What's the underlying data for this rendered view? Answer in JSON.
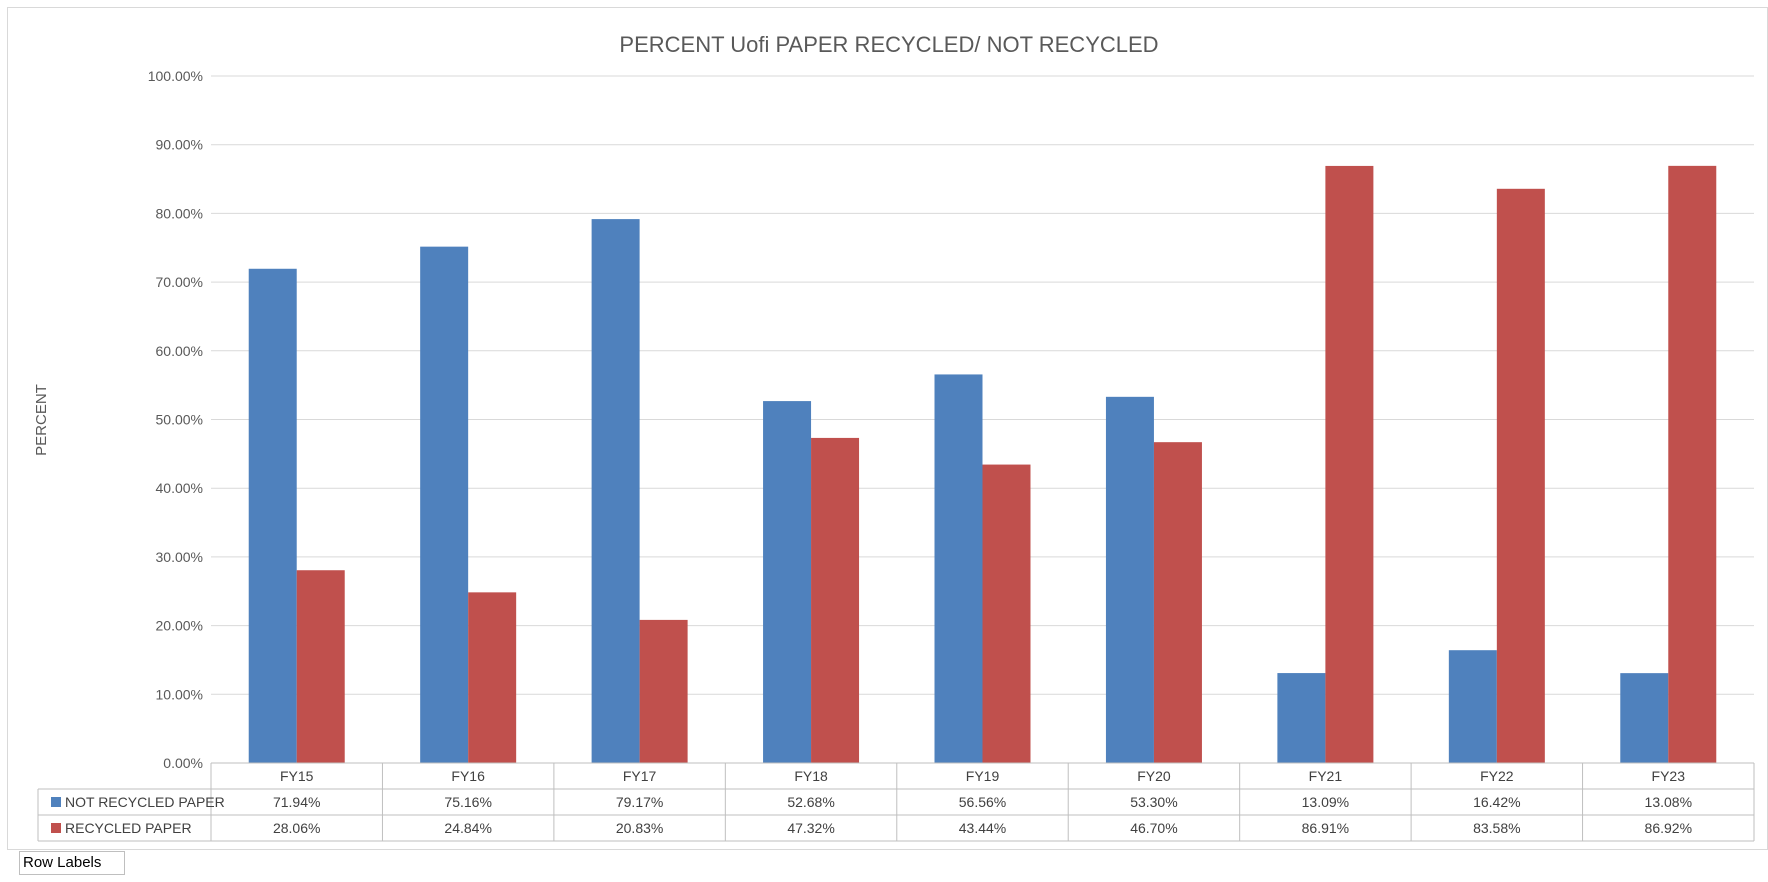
{
  "chart_data": {
    "type": "bar",
    "title": "PERCENT Uofi PAPER RECYCLED/ NOT RECYCLED",
    "ylabel": "PERCENT",
    "xlabel": "",
    "categories": [
      "FY15",
      "FY16",
      "FY17",
      "FY18",
      "FY19",
      "FY20",
      "FY21",
      "FY22",
      "FY23"
    ],
    "ylim": [
      0,
      100
    ],
    "yticks": [
      "0.00%",
      "10.00%",
      "20.00%",
      "30.00%",
      "40.00%",
      "50.00%",
      "60.00%",
      "70.00%",
      "80.00%",
      "90.00%",
      "100.00%"
    ],
    "grid": true,
    "legend": "data-table",
    "series": [
      {
        "name": "NOT RECYCLED PAPER",
        "color": "#4f81bd",
        "values": [
          71.94,
          75.16,
          79.17,
          52.68,
          56.56,
          53.3,
          13.09,
          16.42,
          13.08
        ],
        "labels": [
          "71.94%",
          "75.16%",
          "79.17%",
          "52.68%",
          "56.56%",
          "53.30%",
          "13.09%",
          "16.42%",
          "13.08%"
        ]
      },
      {
        "name": "RECYCLED PAPER",
        "color": "#c0504d",
        "values": [
          28.06,
          24.84,
          20.83,
          47.32,
          43.44,
          46.7,
          86.91,
          83.58,
          86.92
        ],
        "labels": [
          "28.06%",
          "24.84%",
          "20.83%",
          "47.32%",
          "43.44%",
          "46.70%",
          "86.91%",
          "83.58%",
          "86.92%"
        ]
      }
    ]
  },
  "row_labels_button": "Row Labels"
}
